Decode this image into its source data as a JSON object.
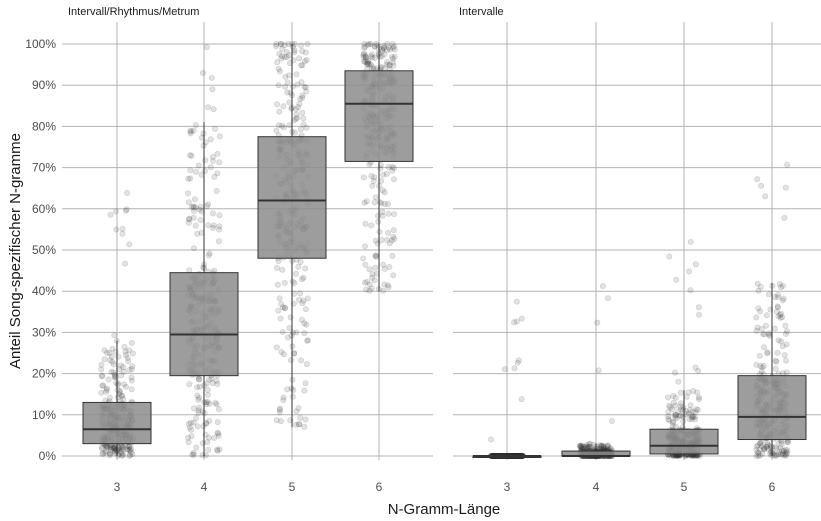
{
  "chart_data": {
    "type": "box",
    "xlabel": "N-Gramm-Länge",
    "ylabel": "Anteil Song-spezifischer N-gramme",
    "ylim": [
      0,
      100
    ],
    "y_ticks": [
      "0%",
      "10%",
      "20%",
      "30%",
      "40%",
      "50%",
      "60%",
      "70%",
      "80%",
      "90%",
      "100%"
    ],
    "categories": [
      "3",
      "4",
      "5",
      "6"
    ],
    "grid": true,
    "panels": [
      {
        "title": "Intervall/Rhythmus/Metrum",
        "boxes": [
          {
            "x": "3",
            "q1": 3,
            "median": 6.5,
            "q3": 13,
            "whisker_low": 0,
            "whisker_high": 28
          },
          {
            "x": "4",
            "q1": 19.5,
            "median": 29.5,
            "q3": 44.5,
            "whisker_low": 0,
            "whisker_high": 81
          },
          {
            "x": "5",
            "q1": 48,
            "median": 62,
            "q3": 77.5,
            "whisker_low": 7,
            "whisker_high": 100
          },
          {
            "x": "6",
            "q1": 71.5,
            "median": 85.5,
            "q3": 93.5,
            "whisker_low": 40,
            "whisker_high": 100
          }
        ]
      },
      {
        "title": "Intervalle",
        "boxes": [
          {
            "x": "3",
            "q1": 0,
            "median": 0,
            "q3": 0,
            "whisker_low": 0,
            "whisker_high": 0
          },
          {
            "x": "4",
            "q1": 0,
            "median": 0,
            "q3": 1.2,
            "whisker_low": 0,
            "whisker_high": 3
          },
          {
            "x": "5",
            "q1": 0.5,
            "median": 2.5,
            "q3": 6.5,
            "whisker_low": 0,
            "whisker_high": 16
          },
          {
            "x": "6",
            "q1": 4,
            "median": 9.5,
            "q3": 19.5,
            "whisker_low": 0,
            "whisker_high": 42
          }
        ]
      }
    ],
    "colors": {
      "box_fill": "#8c8c8c",
      "box_stroke": "#333333",
      "point": "#333333",
      "grid": "#b3b3b3"
    }
  }
}
